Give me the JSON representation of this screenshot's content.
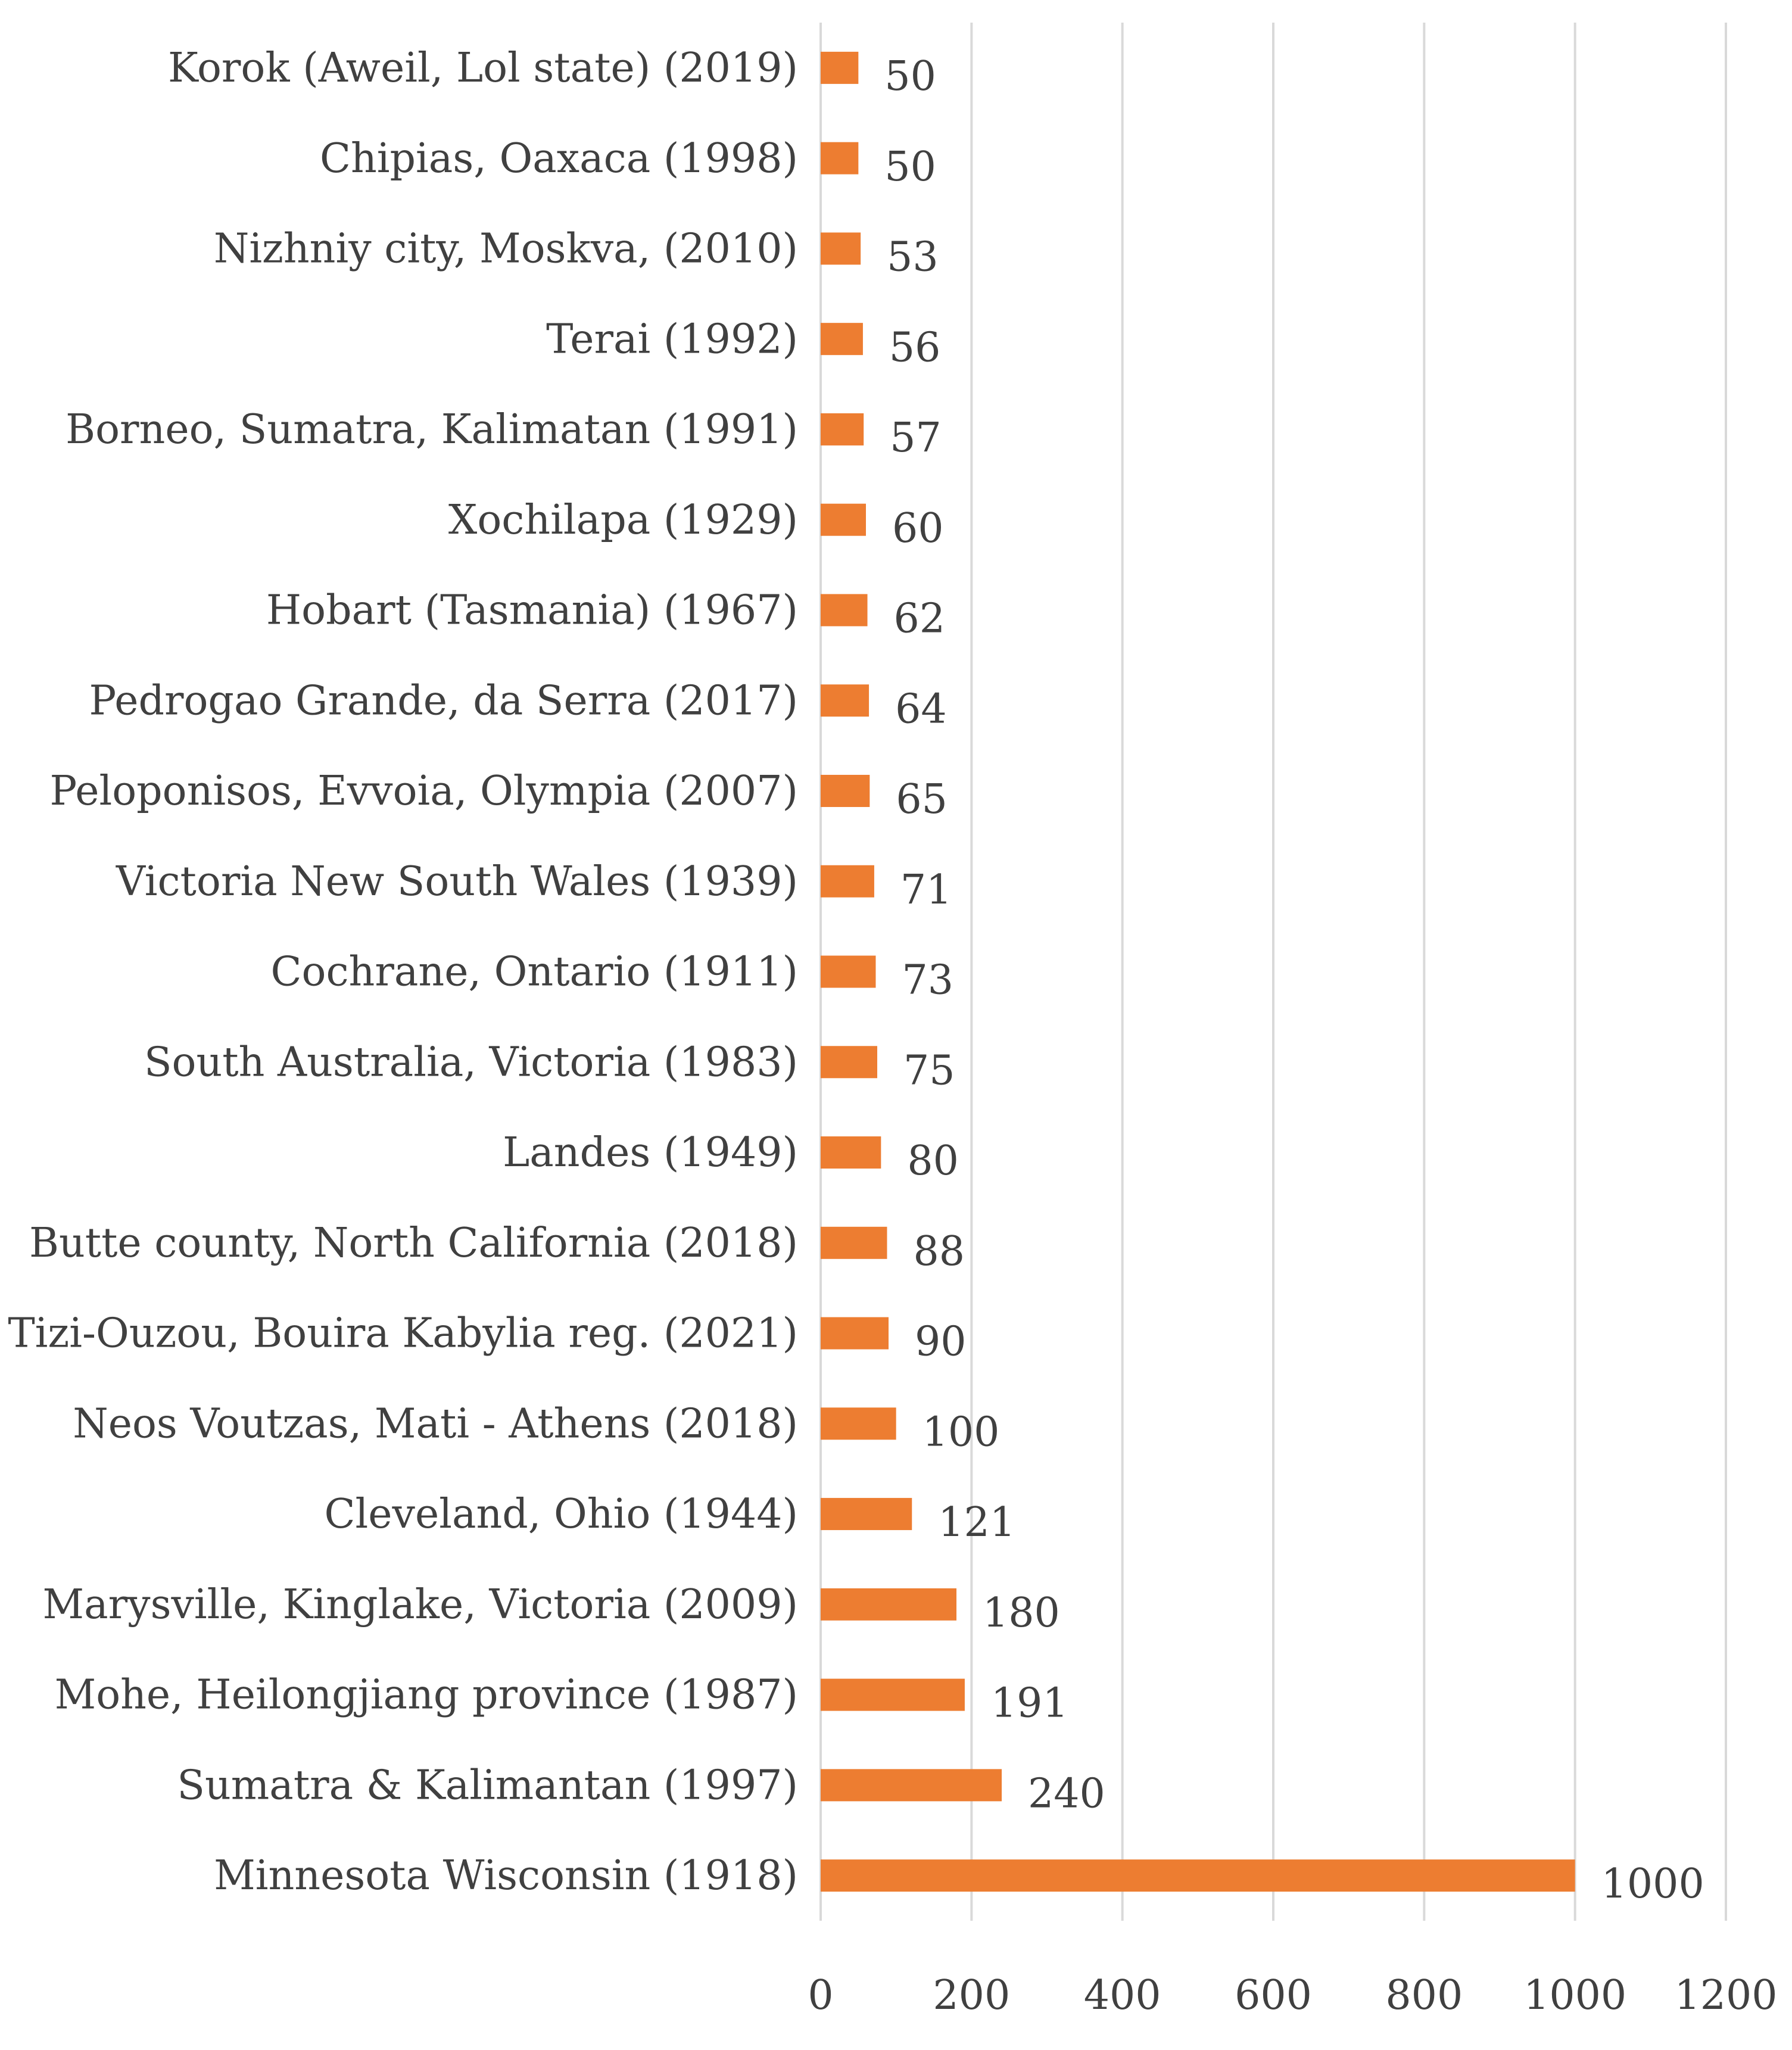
{
  "chart_data": {
    "type": "bar",
    "orientation": "horizontal",
    "title": "",
    "xlabel": "",
    "ylabel": "",
    "categories": [
      "Korok (Aweil, Lol state) (2019)",
      "Chipias, Oaxaca (1998)",
      "Nizhniy city, Moskva, (2010)",
      "Terai (1992)",
      "Borneo, Sumatra, Kalimatan (1991)",
      "Xochilapa (1929)",
      "Hobart (Tasmania) (1967)",
      "Pedrogao Grande, da Serra (2017)",
      "Peloponisos, Evvoia, Olympia (2007)",
      "Victoria New South Wales (1939)",
      "Cochrane, Ontario (1911)",
      "South Australia, Victoria (1983)",
      "Landes (1949)",
      "Butte county, North California (2018)",
      "Tizi-Ouzou, Bouira Kabylia reg. (2021)",
      "Neos Voutzas, Mati - Athens (2018)",
      "Cleveland, Ohio (1944)",
      "Marysville, Kinglake, Victoria (2009)",
      "Mohe, Heilongjiang province (1987)",
      "Sumatra & Kalimantan (1997)",
      "Minnesota Wisconsin (1918)"
    ],
    "values": [
      50,
      50,
      53,
      56,
      57,
      60,
      62,
      64,
      65,
      71,
      73,
      75,
      80,
      88,
      90,
      100,
      121,
      180,
      191,
      240,
      1000
    ],
    "xlim": [
      0,
      1200
    ],
    "xticks": [
      "0",
      "200",
      "400",
      "600",
      "800",
      "1000",
      "1200"
    ],
    "grid": true,
    "bar_color": "#ED7D31",
    "grid_color": "#D9D9D9",
    "text_color": "#404040",
    "data_labels": true,
    "legend": "none"
  }
}
